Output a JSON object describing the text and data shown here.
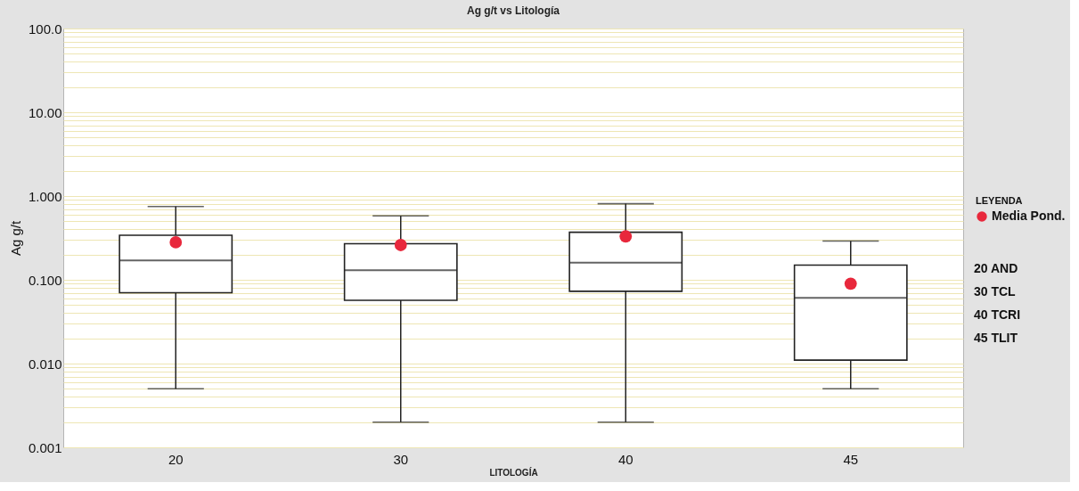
{
  "chart_data": {
    "type": "box",
    "title": "Ag g/t vs Litología",
    "xlabel": "LITOLOGÍA",
    "ylabel": "Ag g/t",
    "legend_title": "LEYENDA",
    "legend": "right",
    "log": true,
    "grid": "y",
    "categories": [
      "20",
      "30",
      "40",
      "45"
    ],
    "boxes": [
      {
        "low": 0.005,
        "q1": 0.07,
        "median": 0.17,
        "q3": 0.34,
        "high": 0.75
      },
      {
        "low": 0.002,
        "q1": 0.057,
        "median": 0.13,
        "q3": 0.27,
        "high": 0.58
      },
      {
        "low": 0.002,
        "q1": 0.073,
        "median": 0.16,
        "q3": 0.37,
        "high": 0.81
      },
      {
        "low": 0.005,
        "q1": 0.011,
        "median": 0.061,
        "q3": 0.15,
        "high": 0.29
      }
    ],
    "series": [
      {
        "type": "scatter",
        "name": "Media Pond.",
        "color": "#e8283c",
        "marker": "circle",
        "x": [
          "20",
          "30",
          "40",
          "45"
        ],
        "values": [
          0.28,
          0.26,
          0.33,
          0.09
        ]
      }
    ],
    "ylim": [
      0.001,
      100
    ],
    "yticks": [
      0.001,
      {
        "value": 0.002,
        "label": null
      },
      {
        "value": 0.003,
        "label": null
      },
      {
        "value": 0.004,
        "label": null
      },
      {
        "value": 0.005,
        "label": null
      },
      {
        "value": 0.006,
        "label": null
      },
      {
        "value": 0.007,
        "label": null
      },
      {
        "value": 0.008,
        "label": null
      },
      {
        "value": 0.009,
        "label": null
      },
      {
        "value": 0.01,
        "label": "0.010"
      },
      {
        "value": 0.02,
        "label": null
      },
      {
        "value": 0.03,
        "label": null
      },
      {
        "value": 0.04,
        "label": null
      },
      {
        "value": 0.05,
        "label": null
      },
      {
        "value": 0.06,
        "label": null
      },
      {
        "value": 0.07,
        "label": null
      },
      {
        "value": 0.08,
        "label": null
      },
      {
        "value": 0.09,
        "label": null
      },
      {
        "value": 0.1,
        "label": "0.100"
      },
      {
        "value": 0.2,
        "label": null
      },
      {
        "value": 0.3,
        "label": null
      },
      {
        "value": 0.4,
        "label": null
      },
      {
        "value": 0.5,
        "label": null
      },
      {
        "value": 0.6,
        "label": null
      },
      {
        "value": 0.7,
        "label": null
      },
      {
        "value": 0.8,
        "label": null
      },
      {
        "value": 0.9,
        "label": null
      },
      {
        "value": 1,
        "label": "1.000"
      },
      {
        "value": 2,
        "label": null
      },
      {
        "value": 3,
        "label": null
      },
      {
        "value": 4,
        "label": null
      },
      {
        "value": 5,
        "label": null
      },
      {
        "value": 6,
        "label": null
      },
      {
        "value": 7,
        "label": null
      },
      {
        "value": 8,
        "label": null
      },
      {
        "value": 9,
        "label": null
      },
      {
        "value": 10,
        "label": "10.00"
      },
      {
        "value": 20,
        "label": null
      },
      {
        "value": 30,
        "label": null
      },
      {
        "value": 40,
        "label": null
      },
      {
        "value": 50,
        "label": null
      },
      {
        "value": 60,
        "label": null
      },
      {
        "value": 70,
        "label": null
      },
      {
        "value": 80,
        "label": null
      },
      {
        "value": 90,
        "label": null
      },
      {
        "value": 100,
        "label": "100.0"
      }
    ],
    "annotations": [
      "20 AND",
      "30 TCL",
      "40 TCRI",
      "45 TLIT"
    ]
  }
}
